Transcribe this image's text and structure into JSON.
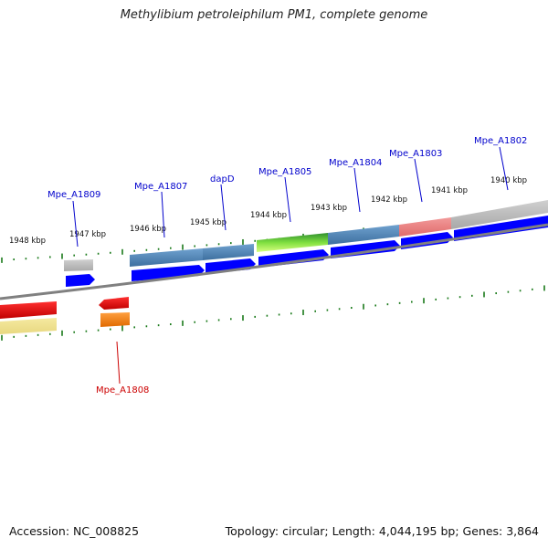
{
  "title": "Methylibium petroleiphilum PM1, complete genome",
  "footer": {
    "accession": "Accession: NC_008825",
    "summary": "Topology: circular; Length: 4,044,195 bp; Genes: 3,864"
  },
  "scale_labels": [
    "1948 kbp",
    "1947 kbp",
    "1946 kbp",
    "1945 kbp",
    "1944 kbp",
    "1943 kbp",
    "1942 kbp",
    "1941 kbp",
    "1940 kbp"
  ],
  "gene_labels": {
    "mpe_a1809": "Mpe_A1809",
    "mpe_a1807": "Mpe_A1807",
    "dapd": "dapD",
    "mpe_a1805": "Mpe_A1805",
    "mpe_a1804": "Mpe_A1804",
    "mpe_a1803": "Mpe_A1803",
    "mpe_a1802": "Mpe_A1802",
    "mpe_a1808": "Mpe_A1808"
  },
  "colors": {
    "label_forward": "#0000cc",
    "label_reverse": "#cc0000",
    "cds": "#0000ff",
    "tick": "#1a7a1a",
    "backbone": "#808080"
  }
}
